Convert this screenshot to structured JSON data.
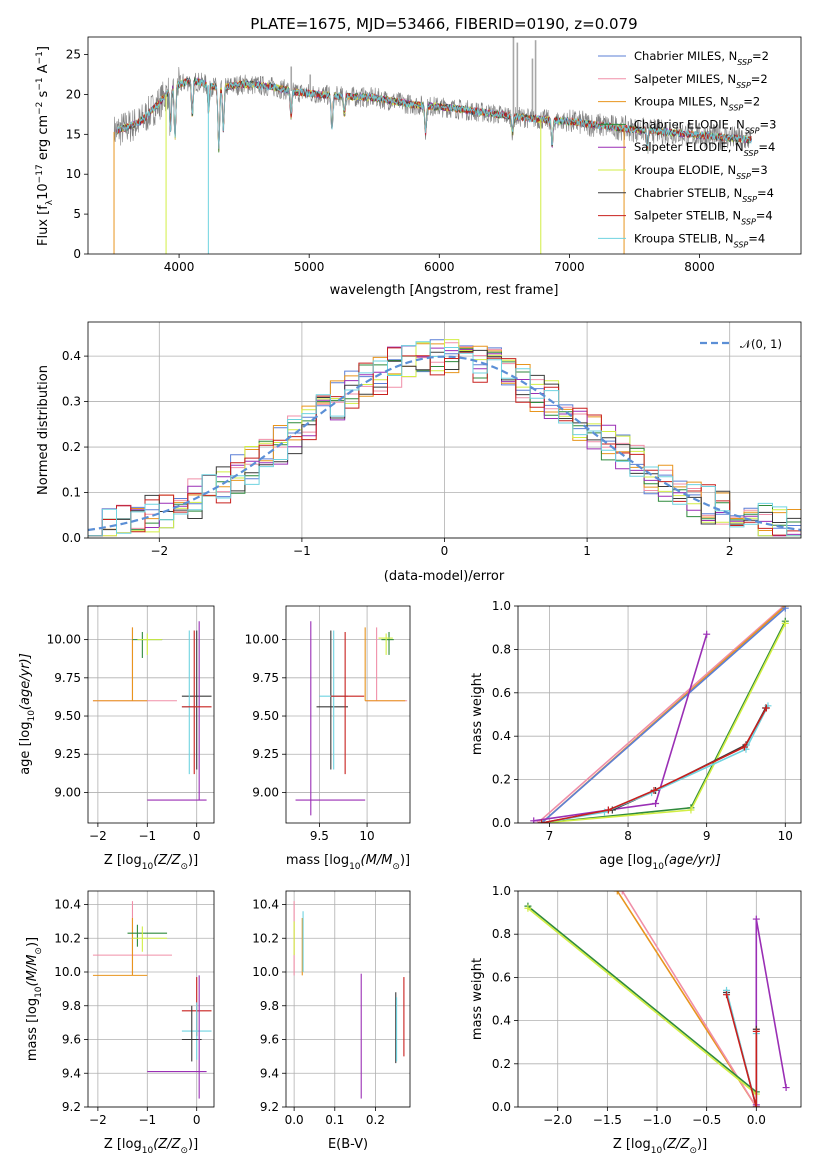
{
  "colors": {
    "chabrier_miles": "#5b7fd6",
    "salpeter_miles": "#f08fa8",
    "kroupa_miles": "#e8951e",
    "chabrier_elodie": "#2f8a3c",
    "salpeter_elodie": "#9a2fb5",
    "kroupa_elodie": "#d2ee44",
    "chabrier_stelib": "#3a3a3a",
    "salpeter_stelib": "#c8201e",
    "kroupa_stelib": "#6fd3e0",
    "data": "#808080",
    "gauss": "#5b8fd6",
    "orange_line": "#d8743a"
  },
  "chart_data": [
    {
      "type": "line",
      "title": "PLATE=1675, MJD=53466, FIBERID=0190, z=0.079",
      "xlabel": "wavelength [Angstrom, rest frame]",
      "ylabel_parts": [
        "Flux [f",
        "λ",
        "10",
        "−17",
        " erg cm",
        "−2",
        " s",
        "−1",
        " A",
        "−1",
        "]"
      ],
      "xlim": [
        3300,
        8780
      ],
      "ylim": [
        0,
        27.2
      ],
      "xticks": [
        4000,
        5000,
        6000,
        7000,
        8000
      ],
      "yticks": [
        0,
        5,
        10,
        15,
        20,
        25
      ],
      "legend": [
        {
          "name": "Chabrier MILES",
          "n": "2",
          "color_key": "chabrier_miles"
        },
        {
          "name": "Salpeter MILES",
          "n": "2",
          "color_key": "salpeter_miles"
        },
        {
          "name": "Kroupa MILES",
          "n": "2",
          "color_key": "kroupa_miles"
        },
        {
          "name": "Chabrier ELODIE",
          "n": "3",
          "color_key": "chabrier_elodie"
        },
        {
          "name": "Salpeter ELODIE",
          "n": "4",
          "color_key": "salpeter_elodie"
        },
        {
          "name": "Kroupa ELODIE",
          "n": "3",
          "color_key": "kroupa_elodie"
        },
        {
          "name": "Chabrier STELIB",
          "n": "4",
          "color_key": "chabrier_stelib"
        },
        {
          "name": "Salpeter STELIB",
          "n": "4",
          "color_key": "salpeter_stelib"
        },
        {
          "name": "Kroupa STELIB",
          "n": "4",
          "color_key": "kroupa_stelib"
        }
      ],
      "legend_nlabel": "N",
      "legend_nsub": "SSP",
      "continuum": [
        [
          3500,
          15.3
        ],
        [
          3700,
          16.5
        ],
        [
          3850,
          19.0
        ],
        [
          3950,
          21.0
        ],
        [
          4100,
          21.8
        ],
        [
          4300,
          20.8
        ],
        [
          4500,
          21.3
        ],
        [
          4700,
          21.0
        ],
        [
          4900,
          20.3
        ],
        [
          5200,
          19.8
        ],
        [
          5500,
          19.6
        ],
        [
          5800,
          18.7
        ],
        [
          6100,
          18.3
        ],
        [
          6400,
          17.6
        ],
        [
          6700,
          17.0
        ],
        [
          7000,
          16.6
        ],
        [
          7200,
          16.2
        ],
        [
          7500,
          15.6
        ],
        [
          7800,
          15.2
        ],
        [
          8000,
          14.9
        ],
        [
          8200,
          14.6
        ],
        [
          8400,
          14.3
        ]
      ],
      "absorption": [
        [
          3934,
          5
        ],
        [
          3969,
          6
        ],
        [
          4102,
          4
        ],
        [
          4227,
          3
        ],
        [
          4305,
          7
        ],
        [
          4340,
          5
        ],
        [
          4861,
          3
        ],
        [
          5175,
          4
        ],
        [
          5270,
          2
        ],
        [
          5895,
          3
        ],
        [
          6563,
          2
        ],
        [
          6867,
          3
        ],
        [
          7600,
          2
        ]
      ],
      "data_spikes": [
        [
          6570,
          27.2
        ],
        [
          6600,
          26.5
        ],
        [
          6740,
          26.8
        ],
        [
          6716,
          24.5
        ],
        [
          4862,
          23.5
        ],
        [
          5008,
          22.5
        ]
      ],
      "model_drops": [
        [
          3500,
          3530,
          "kroupa_miles"
        ],
        [
          3900,
          3915,
          "kroupa_elodie"
        ],
        [
          4225,
          4240,
          "kroupa_stelib"
        ],
        [
          6780,
          6790,
          "kroupa_elodie"
        ],
        [
          7420,
          7440,
          "kroupa_miles"
        ]
      ]
    },
    {
      "type": "step",
      "xlabel": "(data-model)/error",
      "ylabel": "Normed distribution",
      "xlim": [
        -2.5,
        2.5
      ],
      "ylim": [
        0,
        0.475
      ],
      "xticks": [
        -2,
        -1,
        0,
        1,
        2
      ],
      "yticks": [
        0.0,
        0.1,
        0.2,
        0.3,
        0.4
      ],
      "legend": "𝒩(0, 1)",
      "bin_width": 0.1
    },
    {
      "type": "errorbar",
      "xlabel_parts": [
        "Z [log",
        "10",
        "(Z/Z",
        "⊙",
        ")]"
      ],
      "ylabel_parts": [
        "age  [log",
        "10",
        "(age/yr)]"
      ],
      "xlim": [
        -2.2,
        0.35
      ],
      "ylim": [
        8.8,
        10.22
      ],
      "xticks": [
        -2,
        -1,
        0
      ],
      "yticks": [
        9.0,
        9.25,
        9.5,
        9.75,
        10.0
      ],
      "points": [
        {
          "c": "salpeter_miles",
          "x": -1.3,
          "xe": [
            -2.1,
            -0.4
          ],
          "y": 9.6,
          "ye": [
            9.6,
            10.08
          ]
        },
        {
          "c": "kroupa_miles",
          "x": -1.3,
          "xe": [
            -2.1,
            -1.0
          ],
          "y": 9.6,
          "ye": [
            9.6,
            10.08
          ]
        },
        {
          "c": "chabrier_elodie",
          "x": -1.1,
          "xe": [
            -1.3,
            -0.7
          ],
          "y": 10.0,
          "ye": [
            9.88,
            10.05
          ]
        },
        {
          "c": "kroupa_elodie",
          "x": -1.0,
          "xe": [
            -1.2,
            -0.7
          ],
          "y": 10.0,
          "ye": [
            9.9,
            10.04
          ]
        },
        {
          "c": "chabrier_stelib",
          "x": 0.0,
          "xe": [
            -0.3,
            0.3
          ],
          "y": 9.63,
          "ye": [
            9.15,
            10.06
          ]
        },
        {
          "c": "kroupa_stelib",
          "x": -0.15,
          "xe": [
            -0.3,
            0.0
          ],
          "y": 9.56,
          "ye": [
            9.12,
            10.06
          ]
        },
        {
          "c": "salpeter_elodie",
          "x": 0.05,
          "xe": [
            -1.0,
            0.2
          ],
          "y": 8.95,
          "ye": [
            8.95,
            10.12
          ]
        },
        {
          "c": "salpeter_stelib",
          "x": -0.05,
          "xe": [
            -0.3,
            0.3
          ],
          "y": 9.56,
          "ye": [
            9.12,
            10.06
          ]
        }
      ]
    },
    {
      "type": "errorbar",
      "xlabel_parts": [
        "mass [log",
        "10",
        "(M/M",
        "⊙",
        ")]"
      ],
      "ylabel": "",
      "xlim": [
        9.15,
        10.45
      ],
      "ylim": [
        8.8,
        10.22
      ],
      "xticks": [
        9.5,
        10.0
      ],
      "yticks": [
        9.0,
        9.25,
        9.5,
        9.75,
        10.0
      ],
      "points": [
        {
          "c": "salpeter_elodie",
          "x": 9.41,
          "xe": [
            9.25,
            9.98
          ],
          "y": 8.95,
          "ye": [
            8.85,
            10.12
          ]
        },
        {
          "c": "chabrier_stelib",
          "x": 9.62,
          "xe": [
            9.47,
            9.8
          ],
          "y": 9.56,
          "ye": [
            9.15,
            10.06
          ]
        },
        {
          "c": "kroupa_stelib",
          "x": 9.65,
          "xe": [
            9.5,
            9.8
          ],
          "y": 9.63,
          "ye": [
            9.15,
            10.06
          ]
        },
        {
          "c": "salpeter_stelib",
          "x": 9.77,
          "xe": [
            9.62,
            9.97
          ],
          "y": 9.63,
          "ye": [
            9.12,
            10.05
          ]
        },
        {
          "c": "salpeter_miles",
          "x": 10.1,
          "xe": [
            9.98,
            10.42
          ],
          "y": 9.6,
          "ye": [
            9.6,
            10.08
          ]
        },
        {
          "c": "kroupa_miles",
          "x": 9.98,
          "xe": [
            9.98,
            10.4
          ],
          "y": 9.6,
          "ye": [
            9.6,
            10.08
          ]
        },
        {
          "c": "chabrier_elodie",
          "x": 10.23,
          "xe": [
            10.15,
            10.28
          ],
          "y": 10.0,
          "ye": [
            9.9,
            10.05
          ]
        },
        {
          "c": "kroupa_elodie",
          "x": 10.2,
          "xe": [
            10.12,
            10.27
          ],
          "y": 10.01,
          "ye": [
            9.9,
            10.04
          ]
        }
      ]
    },
    {
      "type": "line",
      "xlabel_parts": [
        "age  [log",
        "10",
        "(age/yr)]"
      ],
      "ylabel": "mass weight",
      "xlim": [
        6.6,
        10.2
      ],
      "ylim": [
        0,
        1.0
      ],
      "xticks": [
        7,
        8,
        9,
        10
      ],
      "yticks": [
        0.0,
        0.2,
        0.4,
        0.6,
        0.8,
        1.0
      ],
      "series": [
        {
          "c": "salpeter_miles",
          "x": [
            6.85,
            9.98
          ],
          "y": [
            0.0,
            1.0
          ]
        },
        {
          "c": "kroupa_miles",
          "x": [
            6.9,
            10.0
          ],
          "y": [
            0.0,
            1.0
          ]
        },
        {
          "c": "chabrier_miles",
          "x": [
            6.9,
            10.0
          ],
          "y": [
            0.0,
            0.99
          ]
        },
        {
          "c": "salpeter_elodie",
          "x": [
            6.8,
            7.75,
            8.35,
            9.0
          ],
          "y": [
            0.01,
            0.06,
            0.09,
            0.87
          ]
        },
        {
          "c": "chabrier_elodie",
          "x": [
            6.9,
            8.8,
            10.0
          ],
          "y": [
            0.0,
            0.07,
            0.93
          ]
        },
        {
          "c": "kroupa_elodie",
          "x": [
            6.9,
            8.8,
            10.0
          ],
          "y": [
            0.0,
            0.06,
            0.92
          ]
        },
        {
          "c": "chabrier_stelib",
          "x": [
            6.9,
            7.8,
            8.35,
            9.5,
            9.75
          ],
          "y": [
            0.0,
            0.06,
            0.15,
            0.36,
            0.53
          ]
        },
        {
          "c": "kroupa_stelib",
          "x": [
            6.9,
            7.7,
            8.3,
            9.5,
            9.78
          ],
          "y": [
            0.0,
            0.05,
            0.14,
            0.34,
            0.54
          ]
        },
        {
          "c": "salpeter_stelib",
          "x": [
            6.9,
            7.75,
            8.33,
            9.48,
            9.76
          ],
          "y": [
            0.0,
            0.06,
            0.15,
            0.35,
            0.53
          ]
        }
      ]
    },
    {
      "type": "errorbar",
      "xlabel_parts": [
        "Z [log",
        "10",
        "(Z/Z",
        "⊙",
        ")]"
      ],
      "ylabel_parts": [
        "mass [log",
        "10",
        "(M/M",
        "⊙",
        ")]"
      ],
      "xlim": [
        -2.2,
        0.35
      ],
      "ylim": [
        9.2,
        10.48
      ],
      "xticks": [
        -2,
        -1,
        0
      ],
      "yticks": [
        9.2,
        9.4,
        9.6,
        9.8,
        10.0,
        10.2,
        10.4
      ],
      "points": [
        {
          "c": "salpeter_miles",
          "x": -1.3,
          "xe": [
            -2.1,
            -0.5
          ],
          "y": 10.1,
          "ye": [
            9.98,
            10.42
          ]
        },
        {
          "c": "kroupa_miles",
          "x": -1.3,
          "xe": [
            -2.1,
            -1.0
          ],
          "y": 9.98,
          "ye": [
            9.98,
            10.32
          ]
        },
        {
          "c": "chabrier_elodie",
          "x": -1.2,
          "xe": [
            -1.4,
            -0.6
          ],
          "y": 10.23,
          "ye": [
            10.15,
            10.28
          ]
        },
        {
          "c": "kroupa_elodie",
          "x": -1.1,
          "xe": [
            -1.3,
            -0.6
          ],
          "y": 10.2,
          "ye": [
            10.12,
            10.27
          ]
        },
        {
          "c": "salpeter_stelib",
          "x": 0.0,
          "xe": [
            -0.3,
            0.3
          ],
          "y": 9.77,
          "ye": [
            9.62,
            9.97
          ]
        },
        {
          "c": "kroupa_stelib",
          "x": 0.0,
          "xe": [
            -0.3,
            0.3
          ],
          "y": 9.65,
          "ye": [
            9.48,
            9.82
          ]
        },
        {
          "c": "chabrier_stelib",
          "x": -0.1,
          "xe": [
            -0.3,
            0.1
          ],
          "y": 9.6,
          "ye": [
            9.47,
            9.8
          ]
        },
        {
          "c": "salpeter_elodie",
          "x": 0.05,
          "xe": [
            -1.0,
            0.2
          ],
          "y": 9.41,
          "ye": [
            9.25,
            9.98
          ]
        }
      ]
    },
    {
      "type": "errorbar",
      "xlabel": "E(B-V)",
      "ylabel": "",
      "xlim": [
        -0.02,
        0.285
      ],
      "ylim": [
        9.2,
        10.48
      ],
      "xticks": [
        0.0,
        0.1,
        0.2
      ],
      "yticks": [
        9.2,
        9.4,
        9.6,
        9.8,
        10.0,
        10.2,
        10.4
      ],
      "points": [
        {
          "c": "salpeter_miles",
          "x": 0.0,
          "xe": [
            0.0,
            0.0
          ],
          "y": 10.1,
          "ye": [
            9.98,
            10.42
          ]
        },
        {
          "c": "kroupa_elodie",
          "x": 0.0,
          "xe": [
            0.0,
            0.0
          ],
          "y": 10.2,
          "ye": [
            10.1,
            10.3
          ]
        },
        {
          "c": "kroupa_miles",
          "x": 0.02,
          "xe": [
            0.02,
            0.02
          ],
          "y": 10.1,
          "ye": [
            9.98,
            10.32
          ]
        },
        {
          "c": "kroupa_stelib",
          "x": 0.022,
          "xe": [
            0.022,
            0.022
          ],
          "y": 10.2,
          "ye": [
            10.0,
            10.36
          ]
        },
        {
          "c": "salpeter_elodie",
          "x": 0.165,
          "xe": [
            0.165,
            0.165
          ],
          "y": 9.6,
          "ye": [
            9.25,
            9.99
          ]
        },
        {
          "c": "chabrier_stelib",
          "x": 0.25,
          "xe": [
            0.25,
            0.25
          ],
          "y": 9.65,
          "ye": [
            9.46,
            9.88
          ]
        },
        {
          "c": "kroupa_stelib",
          "x": 0.252,
          "xe": [
            0.252,
            0.252
          ],
          "y": 9.6,
          "ye": [
            9.47,
            9.85
          ]
        },
        {
          "c": "salpeter_stelib",
          "x": 0.27,
          "xe": [
            0.27,
            0.27
          ],
          "y": 9.75,
          "ye": [
            9.5,
            9.97
          ]
        }
      ]
    },
    {
      "type": "line",
      "xlabel_parts": [
        "Z [log",
        "10",
        "(Z/Z",
        "⊙",
        ")]"
      ],
      "ylabel": "mass weight",
      "xlim": [
        -2.4,
        0.45
      ],
      "ylim": [
        0,
        1.0
      ],
      "xticks": [
        -2.0,
        -1.5,
        -1.0,
        -0.5,
        0.0
      ],
      "yticks": [
        0.0,
        0.2,
        0.4,
        0.6,
        0.8,
        1.0
      ],
      "series": [
        {
          "c": "kroupa_miles",
          "x": [
            -1.4,
            0.0
          ],
          "y": [
            1.0,
            0.0
          ]
        },
        {
          "c": "salpeter_miles",
          "x": [
            -1.35,
            0.0
          ],
          "y": [
            1.0,
            0.0
          ]
        },
        {
          "c": "chabrier_elodie",
          "x": [
            -2.3,
            0.0
          ],
          "y": [
            0.93,
            0.07
          ]
        },
        {
          "c": "kroupa_elodie",
          "x": [
            -2.3,
            0.0
          ],
          "y": [
            0.92,
            0.06
          ]
        },
        {
          "c": "salpeter_elodie",
          "x": [
            0.0,
            0.0,
            0.3
          ],
          "y": [
            0.01,
            0.87,
            0.09
          ]
        },
        {
          "c": "chabrier_stelib",
          "x": [
            -0.3,
            0.0,
            0.0
          ],
          "y": [
            0.53,
            0.0,
            0.36
          ]
        },
        {
          "c": "kroupa_stelib",
          "x": [
            -0.3,
            0.0,
            0.0
          ],
          "y": [
            0.54,
            0.0,
            0.34
          ]
        },
        {
          "c": "salpeter_stelib",
          "x": [
            -0.3,
            0.0,
            0.0
          ],
          "y": [
            0.52,
            0.0,
            0.35
          ]
        }
      ]
    }
  ]
}
